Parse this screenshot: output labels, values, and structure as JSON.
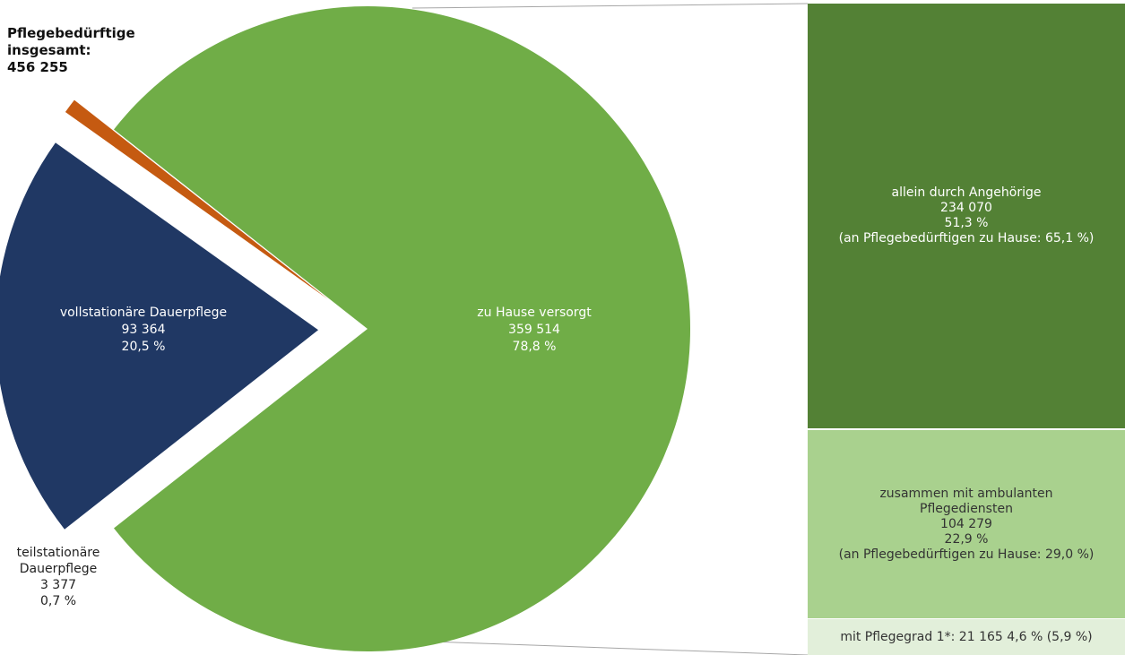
{
  "total": {
    "line1": "Pflegebedürftige",
    "line2": "insgesamt:",
    "line3": "456 255"
  },
  "colors": {
    "home": "#70ad47",
    "full_stationary": "#203864",
    "partial_stationary": "#c55a11",
    "relatives": "#538135",
    "ambulant": "#a9d18e",
    "grade1": "#e2efda",
    "connector": "#a6a6a6"
  },
  "chart_data": {
    "type": "pie",
    "total": 456255,
    "slices": [
      {
        "key": "home",
        "label": "zu Hause versorgt",
        "value": 359514,
        "value_text": "359 514",
        "percent": 78.8,
        "percent_text": "78,8 %"
      },
      {
        "key": "full_stationary",
        "label": "vollstationäre Dauerpflege",
        "value": 93364,
        "value_text": "93 364",
        "percent": 20.5,
        "percent_text": "20,5 %"
      },
      {
        "key": "partial_stationary",
        "label_lines": [
          "teilstationäre",
          "Dauerpflege"
        ],
        "value": 3377,
        "value_text": "3 377",
        "percent": 0.7,
        "percent_text": "0,7 %"
      }
    ],
    "breakdown": [
      {
        "key": "relatives",
        "label": "allein durch Angehörige",
        "value": 234070,
        "value_text": "234 070",
        "percent": 51.3,
        "percent_text": "51,3 %",
        "note": "(an Pflegebedürftigen zu Hause: 65,1 %)"
      },
      {
        "key": "ambulant",
        "label_lines": [
          "zusammen mit ambulanten",
          "Pflegediensten"
        ],
        "value": 104279,
        "value_text": "104 279",
        "percent": 22.9,
        "percent_text": "22,9 %",
        "note": "(an Pflegebedürftigen zu Hause: 29,0 %)"
      },
      {
        "key": "grade1",
        "value": 21165,
        "percent": 4.6,
        "text": "mit Pflegegrad 1*: 21 165   4,6 % (5,9 %)"
      }
    ]
  }
}
